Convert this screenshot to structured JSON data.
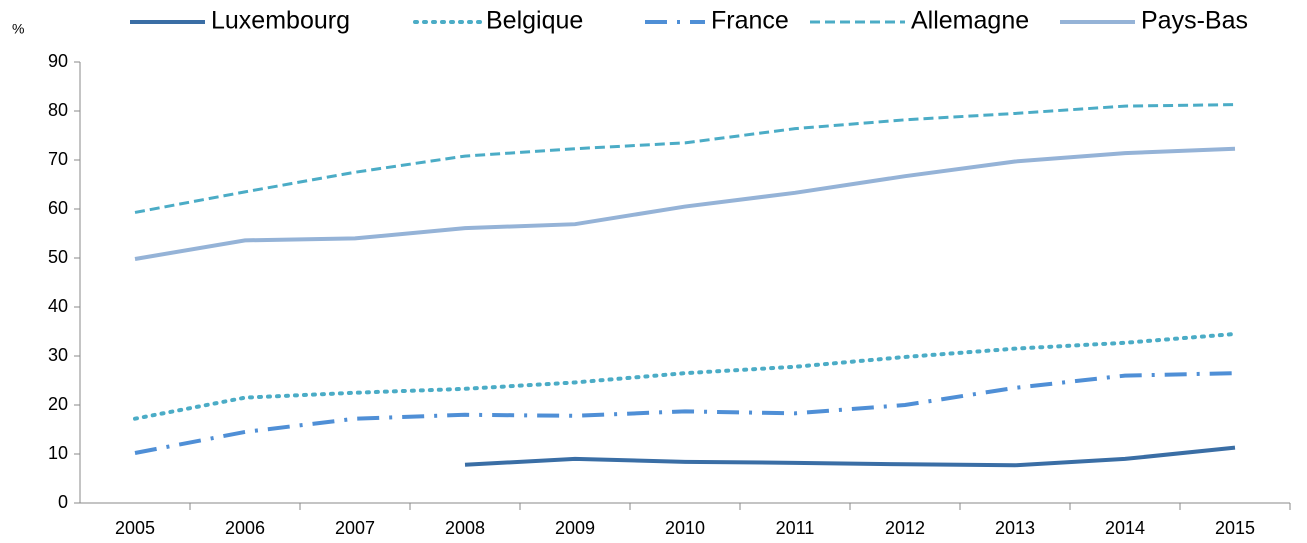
{
  "chart_data": {
    "type": "line",
    "y_label": "%",
    "categories": [
      "2005",
      "2006",
      "2007",
      "2008",
      "2009",
      "2010",
      "2011",
      "2012",
      "2013",
      "2014",
      "2015"
    ],
    "series": [
      {
        "name": "Luxembourg",
        "color": "#3a6ea5",
        "dash": "solid",
        "values": [
          null,
          null,
          null,
          7.8,
          9.0,
          8.4,
          8.2,
          7.9,
          7.7,
          9.0,
          11.3
        ]
      },
      {
        "name": "Belgique",
        "color": "#4bacc6",
        "dash": "dot",
        "values": [
          17.2,
          21.5,
          22.5,
          23.3,
          24.6,
          26.5,
          27.8,
          29.8,
          31.5,
          32.7,
          34.5
        ]
      },
      {
        "name": "France",
        "color": "#4f8fd6",
        "dash": "dashdot",
        "values": [
          10.2,
          14.5,
          17.2,
          18.0,
          17.8,
          18.7,
          18.3,
          20.0,
          23.5,
          26.0,
          26.5
        ]
      },
      {
        "name": "Allemagne",
        "color": "#4bacc6",
        "dash": "dash",
        "values": [
          59.3,
          63.5,
          67.5,
          70.8,
          72.3,
          73.5,
          76.4,
          78.2,
          79.5,
          81.0,
          81.3
        ]
      },
      {
        "name": "Pays-Bas",
        "color": "#95b3d7",
        "dash": "solid",
        "values": [
          49.8,
          53.6,
          54.0,
          56.1,
          56.9,
          60.5,
          63.3,
          66.7,
          69.7,
          71.4,
          72.3
        ]
      }
    ],
    "ylim": [
      0,
      90
    ],
    "yticks": [
      0,
      10,
      20,
      30,
      40,
      50,
      60,
      70,
      80,
      90
    ],
    "grid": false,
    "legend": "top"
  }
}
